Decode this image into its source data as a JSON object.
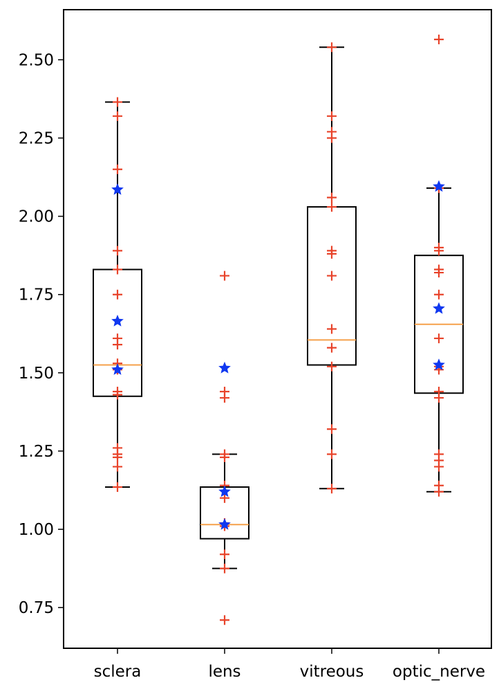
{
  "chart_data": {
    "type": "boxplot",
    "title": "",
    "xlabel": "",
    "ylabel": "",
    "ylim": [
      0.62,
      2.66
    ],
    "yticks": [
      0.75,
      1.0,
      1.25,
      1.5,
      1.75,
      2.0,
      2.25,
      2.5
    ],
    "ytick_labels": [
      "0.75",
      "1.00",
      "1.25",
      "1.50",
      "1.75",
      "2.00",
      "2.25",
      "2.50"
    ],
    "grid": false,
    "legend": "none",
    "colors": {
      "box": "#000000",
      "median": "#f5a04a",
      "plus_points": "#e8432a",
      "star_points": "#1038f0",
      "background": "#ffffff"
    },
    "categories": [
      "sclera",
      "lens",
      "vitreous",
      "optic_nerve"
    ],
    "boxes": [
      {
        "name": "sclera",
        "whisker_low": 1.135,
        "q1": 1.425,
        "median": 1.525,
        "q3": 1.83,
        "whisker_high": 2.365
      },
      {
        "name": "lens",
        "whisker_low": 0.875,
        "q1": 0.97,
        "median": 1.015,
        "q3": 1.135,
        "whisker_high": 1.24
      },
      {
        "name": "vitreous",
        "whisker_low": 1.13,
        "q1": 1.525,
        "median": 1.605,
        "q3": 2.03,
        "whisker_high": 2.54
      },
      {
        "name": "optic_nerve",
        "whisker_low": 1.12,
        "q1": 1.435,
        "median": 1.655,
        "q3": 1.875,
        "whisker_high": 2.09
      }
    ],
    "points": [
      {
        "category": "sclera",
        "plus": [
          2.365,
          2.32,
          2.15,
          1.89,
          1.83,
          1.75,
          1.61,
          1.59,
          1.53,
          1.51,
          1.44,
          1.43,
          1.26,
          1.24,
          1.23,
          1.2,
          1.135
        ],
        "star": [
          2.085,
          1.665,
          1.51
        ]
      },
      {
        "category": "lens",
        "plus": [
          1.81,
          1.44,
          1.42,
          1.24,
          1.23,
          1.14,
          1.1,
          1.02,
          1.01,
          0.92,
          0.875,
          0.71
        ],
        "star": [
          1.515,
          1.12,
          1.015
        ]
      },
      {
        "category": "vitreous",
        "plus": [
          2.54,
          2.32,
          2.27,
          2.25,
          2.06,
          2.03,
          1.89,
          1.88,
          1.81,
          1.64,
          1.58,
          1.52,
          1.32,
          1.24,
          1.13
        ],
        "star": []
      },
      {
        "category": "optic_nerve",
        "plus": [
          2.565,
          2.09,
          1.9,
          1.89,
          1.83,
          1.82,
          1.75,
          1.61,
          1.52,
          1.51,
          1.44,
          1.42,
          1.24,
          1.22,
          1.2,
          1.14,
          1.12
        ],
        "star": [
          2.095,
          1.705,
          1.525
        ]
      }
    ]
  }
}
